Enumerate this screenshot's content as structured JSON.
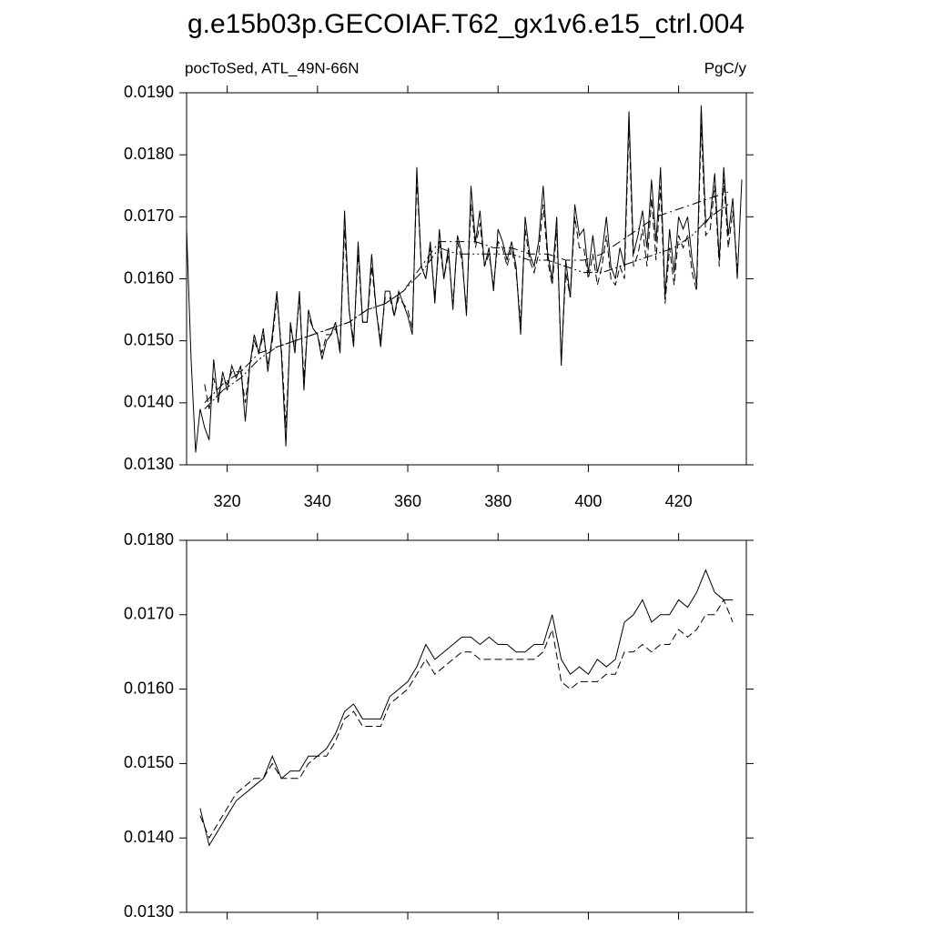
{
  "title": "g.e15b03p.GECOIAF.T62_gx1v6.e15_ctrl.004",
  "chart_data": [
    {
      "type": "line",
      "left_label": "pocToSed, ATL_49N-66N",
      "right_label": "PgC/y",
      "xlim": [
        311,
        435
      ],
      "xticks": [
        320,
        340,
        360,
        380,
        400,
        420
      ],
      "xtick_labels": true,
      "ylim": [
        0.013,
        0.019
      ],
      "yticks": [
        {
          "value": 0.013,
          "label": "0.0130"
        },
        {
          "value": 0.014,
          "label": "0.0140"
        },
        {
          "value": 0.015,
          "label": "0.0150"
        },
        {
          "value": 0.016,
          "label": "0.0160"
        },
        {
          "value": 0.017,
          "label": "0.0170"
        },
        {
          "value": 0.018,
          "label": "0.0180"
        },
        {
          "value": 0.019,
          "label": "0.0190"
        }
      ],
      "series": [
        {
          "color": "#000000",
          "dash": "solid",
          "x": [
            311,
            312,
            313,
            314,
            315,
            316,
            317,
            318,
            319,
            320,
            321,
            322,
            323,
            324,
            325,
            326,
            327,
            328,
            329,
            330,
            331,
            332,
            333,
            334,
            335,
            336,
            337,
            338,
            339,
            340,
            341,
            342,
            343,
            344,
            345,
            346,
            347,
            348,
            349,
            350,
            351,
            352,
            353,
            354,
            355,
            356,
            357,
            358,
            359,
            360,
            361,
            362,
            363,
            364,
            365,
            366,
            367,
            368,
            369,
            370,
            371,
            372,
            373,
            374,
            375,
            376,
            377,
            378,
            379,
            380,
            381,
            382,
            383,
            384,
            385,
            386,
            387,
            388,
            389,
            390,
            391,
            392,
            393,
            394,
            395,
            396,
            397,
            398,
            399,
            400,
            401,
            402,
            403,
            404,
            405,
            406,
            407,
            408,
            409,
            410,
            411,
            412,
            413,
            414,
            415,
            416,
            417,
            418,
            419,
            420,
            421,
            422,
            423,
            424,
            425,
            426,
            427,
            428,
            429,
            430,
            431,
            432,
            433,
            434
          ],
          "values": [
            0.0168,
            0.0147,
            0.0132,
            0.0139,
            0.0136,
            0.0134,
            0.0147,
            0.014,
            0.0145,
            0.0142,
            0.0146,
            0.0144,
            0.0146,
            0.0137,
            0.0146,
            0.0151,
            0.0148,
            0.0152,
            0.0145,
            0.0151,
            0.0158,
            0.0148,
            0.0133,
            0.0153,
            0.0148,
            0.0158,
            0.0142,
            0.0155,
            0.0152,
            0.0151,
            0.0147,
            0.015,
            0.0151,
            0.0153,
            0.0148,
            0.0171,
            0.0155,
            0.0149,
            0.0166,
            0.0153,
            0.0153,
            0.0164,
            0.0155,
            0.0149,
            0.0158,
            0.0158,
            0.0154,
            0.0158,
            0.0156,
            0.0154,
            0.0151,
            0.0178,
            0.0162,
            0.016,
            0.0166,
            0.0156,
            0.0168,
            0.016,
            0.0165,
            0.0155,
            0.0167,
            0.0164,
            0.0154,
            0.0175,
            0.0166,
            0.0171,
            0.0162,
            0.0165,
            0.0158,
            0.0168,
            0.0166,
            0.0163,
            0.0166,
            0.0162,
            0.0151,
            0.017,
            0.0164,
            0.0162,
            0.0166,
            0.0175,
            0.0164,
            0.016,
            0.017,
            0.0146,
            0.0163,
            0.0157,
            0.0172,
            0.0167,
            0.0168,
            0.0161,
            0.0167,
            0.0161,
            0.0164,
            0.017,
            0.0162,
            0.016,
            0.0165,
            0.0162,
            0.0187,
            0.0164,
            0.0167,
            0.0171,
            0.0165,
            0.0176,
            0.0166,
            0.0178,
            0.0157,
            0.0168,
            0.0161,
            0.017,
            0.0168,
            0.017,
            0.0163,
            0.0159,
            0.0188,
            0.0169,
            0.017,
            0.0177,
            0.0163,
            0.0178,
            0.0167,
            0.0173,
            0.016,
            0.0176
          ]
        },
        {
          "color": "#000000",
          "dash": "dashed",
          "x": [
            315,
            316,
            317,
            318,
            319,
            320,
            321,
            322,
            323,
            324,
            325,
            326,
            327,
            328,
            329,
            330,
            331,
            332,
            333,
            334,
            335,
            336,
            337,
            338,
            339,
            340,
            341,
            342,
            343,
            344,
            345,
            346,
            347,
            348,
            349,
            350,
            351,
            352,
            353,
            354,
            355,
            356,
            357,
            358,
            359,
            360,
            361,
            362,
            363,
            364,
            365,
            366,
            367,
            368,
            369,
            370,
            371,
            372,
            373,
            374,
            375,
            376,
            377,
            378,
            379,
            380,
            381,
            382,
            383,
            384,
            385,
            386,
            387,
            388,
            389,
            390,
            391,
            392,
            393,
            394,
            395,
            396,
            397,
            398,
            399,
            400,
            401,
            402,
            403,
            404,
            405,
            406,
            407,
            408,
            409,
            410,
            411,
            412,
            413,
            414,
            415,
            416,
            417,
            418,
            419,
            420,
            421,
            422,
            423,
            424,
            425,
            426,
            427,
            428,
            429,
            430,
            431,
            432,
            433
          ],
          "values": [
            0.0143,
            0.0139,
            0.0144,
            0.0141,
            0.0144,
            0.0143,
            0.0145,
            0.0145,
            0.0145,
            0.014,
            0.0146,
            0.015,
            0.0148,
            0.0151,
            0.0146,
            0.015,
            0.0157,
            0.0149,
            0.0136,
            0.0152,
            0.0149,
            0.0157,
            0.0144,
            0.0154,
            0.0152,
            0.0151,
            0.0148,
            0.0151,
            0.0151,
            0.0152,
            0.0149,
            0.0168,
            0.0155,
            0.015,
            0.0164,
            0.0153,
            0.0153,
            0.0162,
            0.0155,
            0.015,
            0.0157,
            0.0157,
            0.0154,
            0.0157,
            0.0156,
            0.0155,
            0.0152,
            0.0176,
            0.0162,
            0.016,
            0.0165,
            0.0157,
            0.0166,
            0.016,
            0.0164,
            0.0156,
            0.0166,
            0.0163,
            0.0155,
            0.0172,
            0.0165,
            0.0169,
            0.0162,
            0.0164,
            0.0159,
            0.0166,
            0.0165,
            0.0162,
            0.0165,
            0.0161,
            0.0153,
            0.0168,
            0.0163,
            0.0161,
            0.0164,
            0.0172,
            0.0163,
            0.0159,
            0.0168,
            0.0147,
            0.0161,
            0.0157,
            0.017,
            0.0165,
            0.0165,
            0.016,
            0.0164,
            0.0159,
            0.0162,
            0.0167,
            0.016,
            0.0159,
            0.0162,
            0.016,
            0.0185,
            0.0162,
            0.0164,
            0.0168,
            0.0162,
            0.0173,
            0.0163,
            0.0175,
            0.0156,
            0.0165,
            0.0159,
            0.0167,
            0.0165,
            0.0167,
            0.0161,
            0.0158,
            0.0185,
            0.0167,
            0.0168,
            0.0175,
            0.0162,
            0.0176,
            0.0165,
            0.0171,
            0.0162
          ]
        },
        {
          "color": "#000000",
          "dash": "dashdot",
          "x": [
            315,
            319,
            323,
            327,
            331,
            335,
            339,
            343,
            347,
            351,
            355,
            359,
            363,
            367,
            371,
            375,
            379,
            383,
            387,
            391,
            395,
            399,
            403,
            407,
            411,
            415,
            419,
            423,
            427,
            431
          ],
          "values": [
            0.014,
            0.0143,
            0.0145,
            0.0148,
            0.0149,
            0.015,
            0.0151,
            0.0152,
            0.0153,
            0.0155,
            0.0156,
            0.0158,
            0.0162,
            0.0166,
            0.0166,
            0.0166,
            0.0165,
            0.0165,
            0.0164,
            0.0164,
            0.0163,
            0.0163,
            0.0164,
            0.0166,
            0.0168,
            0.017,
            0.0171,
            0.0172,
            0.0173,
            0.0174
          ]
        },
        {
          "color": "#000000",
          "dash": "dashdotdot",
          "x": [
            315,
            319,
            323,
            327,
            331,
            335,
            339,
            343,
            347,
            351,
            355,
            359,
            363,
            367,
            371,
            375,
            379,
            383,
            387,
            391,
            395,
            399,
            403,
            407,
            411,
            415,
            419,
            423,
            427,
            431
          ],
          "values": [
            0.0139,
            0.0142,
            0.0144,
            0.0147,
            0.0149,
            0.015,
            0.0151,
            0.0152,
            0.0153,
            0.0155,
            0.0156,
            0.0158,
            0.0161,
            0.0165,
            0.0164,
            0.0164,
            0.0164,
            0.0164,
            0.0163,
            0.0163,
            0.0162,
            0.0161,
            0.0161,
            0.0162,
            0.0163,
            0.0164,
            0.0165,
            0.0167,
            0.017,
            0.0172
          ]
        }
      ]
    },
    {
      "type": "line",
      "xlim": [
        311,
        435
      ],
      "xticks": [
        320,
        340,
        360,
        380,
        400,
        420
      ],
      "xtick_labels": false,
      "ylim": [
        0.013,
        0.018
      ],
      "yticks": [
        {
          "value": 0.013,
          "label": "0.0130"
        },
        {
          "value": 0.014,
          "label": "0.0140"
        },
        {
          "value": 0.015,
          "label": "0.0150"
        },
        {
          "value": 0.016,
          "label": "0.0160"
        },
        {
          "value": 0.017,
          "label": "0.0170"
        },
        {
          "value": 0.018,
          "label": "0.0180"
        }
      ],
      "series": [
        {
          "color": "#000000",
          "dash": "solid",
          "x": [
            314,
            316,
            318,
            320,
            322,
            324,
            326,
            328,
            330,
            332,
            334,
            336,
            338,
            340,
            342,
            344,
            346,
            348,
            350,
            352,
            354,
            356,
            358,
            360,
            362,
            364,
            366,
            368,
            370,
            372,
            374,
            376,
            378,
            380,
            382,
            384,
            386,
            388,
            390,
            392,
            394,
            396,
            398,
            400,
            402,
            404,
            406,
            408,
            410,
            412,
            414,
            416,
            418,
            420,
            422,
            424,
            426,
            428,
            430,
            432
          ],
          "values": [
            0.0144,
            0.0139,
            0.0141,
            0.0143,
            0.0145,
            0.0146,
            0.0147,
            0.0148,
            0.0151,
            0.0148,
            0.0149,
            0.0149,
            0.0151,
            0.0151,
            0.0152,
            0.0154,
            0.0157,
            0.0158,
            0.0156,
            0.0156,
            0.0156,
            0.0159,
            0.016,
            0.0161,
            0.0163,
            0.0166,
            0.0164,
            0.0165,
            0.0166,
            0.0167,
            0.0167,
            0.0166,
            0.0167,
            0.0166,
            0.0166,
            0.0165,
            0.0165,
            0.0166,
            0.0166,
            0.017,
            0.0164,
            0.0162,
            0.0163,
            0.0162,
            0.0164,
            0.0163,
            0.0164,
            0.0169,
            0.017,
            0.0172,
            0.0169,
            0.017,
            0.017,
            0.0172,
            0.0171,
            0.0173,
            0.0176,
            0.0173,
            0.0172,
            0.0172
          ]
        },
        {
          "color": "#000000",
          "dash": "dashed",
          "x": [
            314,
            316,
            318,
            320,
            322,
            324,
            326,
            328,
            330,
            332,
            334,
            336,
            338,
            340,
            342,
            344,
            346,
            348,
            350,
            352,
            354,
            356,
            358,
            360,
            362,
            364,
            366,
            368,
            370,
            372,
            374,
            376,
            378,
            380,
            382,
            384,
            386,
            388,
            390,
            392,
            394,
            396,
            398,
            400,
            402,
            404,
            406,
            408,
            410,
            412,
            414,
            416,
            418,
            420,
            422,
            424,
            426,
            428,
            430,
            432
          ],
          "values": [
            0.0143,
            0.014,
            0.0142,
            0.0144,
            0.0146,
            0.0147,
            0.0148,
            0.0148,
            0.015,
            0.0148,
            0.0148,
            0.0148,
            0.015,
            0.0151,
            0.0151,
            0.0153,
            0.0156,
            0.0157,
            0.0155,
            0.0155,
            0.0155,
            0.0158,
            0.0159,
            0.016,
            0.0162,
            0.0164,
            0.0162,
            0.0163,
            0.0164,
            0.0165,
            0.0165,
            0.0164,
            0.0164,
            0.0164,
            0.0164,
            0.0164,
            0.0164,
            0.0164,
            0.0165,
            0.0168,
            0.0161,
            0.016,
            0.0161,
            0.0161,
            0.0161,
            0.0162,
            0.0162,
            0.0165,
            0.0165,
            0.0166,
            0.0165,
            0.0166,
            0.0166,
            0.0168,
            0.0167,
            0.0168,
            0.017,
            0.017,
            0.0172,
            0.0169
          ]
        }
      ]
    }
  ]
}
